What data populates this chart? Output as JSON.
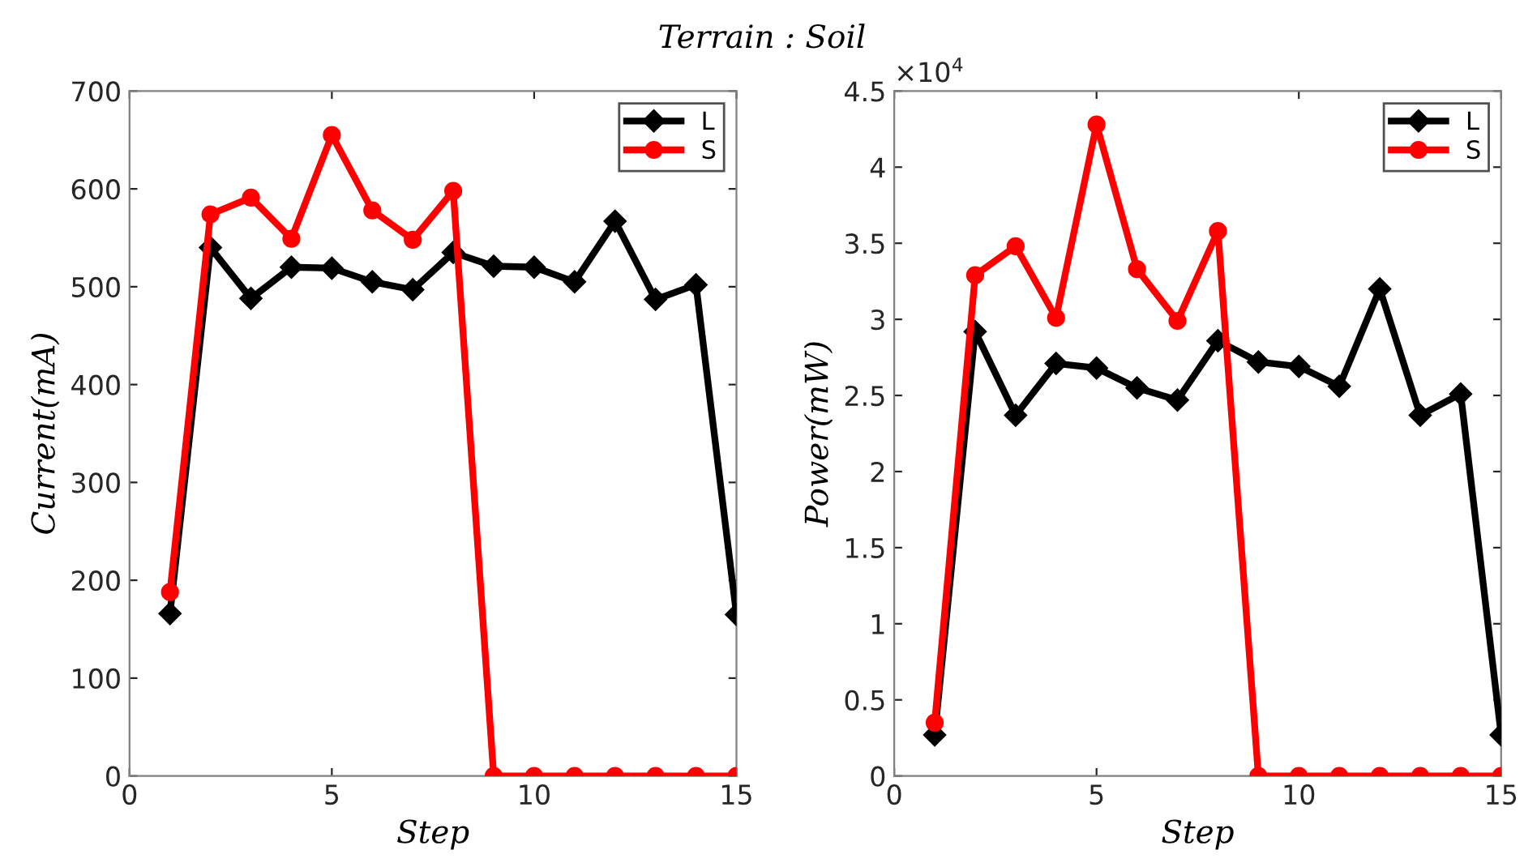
{
  "chart_data": [
    {
      "type": "line",
      "title": "Terrain : Soil",
      "xlabel": "Step",
      "ylabel": "Current(mA)",
      "x": [
        1,
        2,
        3,
        4,
        5,
        6,
        7,
        8,
        9,
        10,
        11,
        12,
        13,
        14,
        15
      ],
      "series": [
        {
          "name": "L",
          "color": "#000000",
          "marker": "diamond",
          "values": [
            166,
            540,
            488,
            520,
            519,
            505,
            497,
            535,
            521,
            520,
            505,
            567,
            487,
            502,
            165
          ]
        },
        {
          "name": "S",
          "color": "#ff0000",
          "marker": "circle",
          "values": [
            188,
            574,
            591,
            549,
            655,
            578,
            548,
            598,
            0,
            0,
            0,
            0,
            0,
            0,
            0
          ]
        }
      ],
      "xlim": [
        0,
        15
      ],
      "xticks": [
        0,
        5,
        10,
        15
      ],
      "ylim": [
        0,
        700
      ],
      "yticks": [
        0,
        100,
        200,
        300,
        400,
        500,
        600,
        700
      ],
      "grid": false,
      "legend": "top right",
      "line_style": "solid"
    },
    {
      "type": "line",
      "xlabel": "Step",
      "ylabel": "Power(mW)",
      "annotations": [
        "×10$^{4}$"
      ],
      "x": [
        1,
        2,
        3,
        4,
        5,
        6,
        7,
        8,
        9,
        10,
        11,
        12,
        13,
        14,
        15
      ],
      "series": [
        {
          "name": "L",
          "color": "#000000",
          "marker": "diamond",
          "values": [
            0.27,
            2.92,
            2.37,
            2.71,
            2.68,
            2.55,
            2.47,
            2.86,
            2.72,
            2.69,
            2.56,
            3.2,
            2.37,
            2.51,
            0.27
          ]
        },
        {
          "name": "S",
          "color": "#ff0000",
          "marker": "circle",
          "values": [
            0.35,
            3.29,
            3.48,
            3.01,
            4.28,
            3.33,
            2.99,
            3.58,
            0,
            0,
            0,
            0,
            0,
            0,
            0
          ]
        }
      ],
      "xlim": [
        0,
        15
      ],
      "xticks": [
        0,
        5,
        10,
        15
      ],
      "ylim": [
        0,
        4.5
      ],
      "yticks": [
        0,
        0.5,
        1,
        1.5,
        2,
        2.5,
        3,
        3.5,
        4,
        4.5
      ],
      "grid": false,
      "legend": "top right",
      "line_style": "solid"
    }
  ]
}
